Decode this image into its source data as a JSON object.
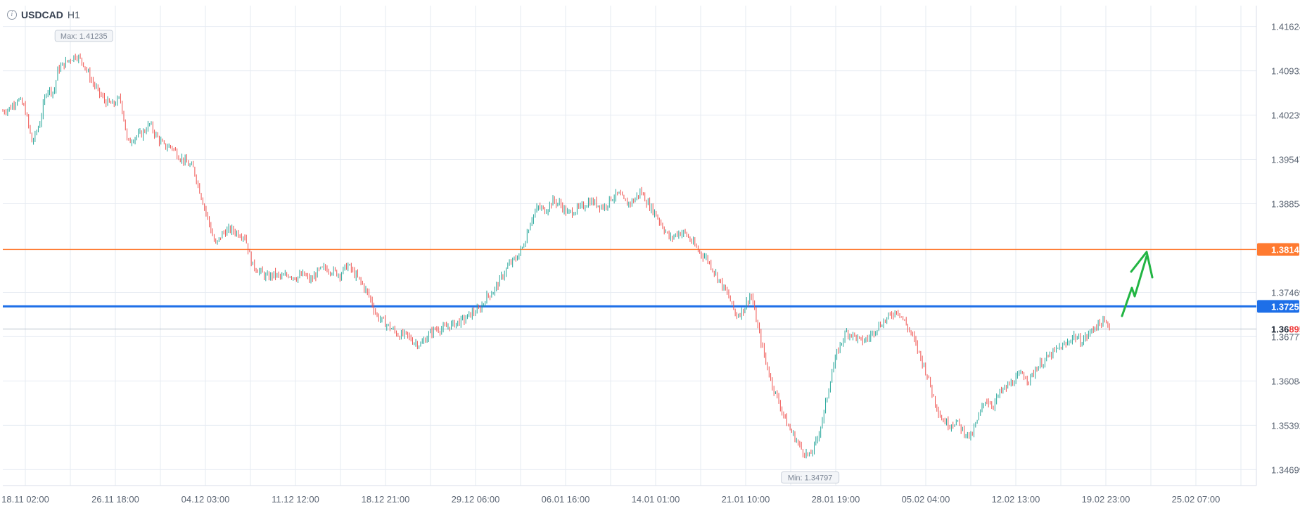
{
  "header": {
    "info_icon": "info-icon",
    "symbol": "USDCAD",
    "timeframe": "H1"
  },
  "colors": {
    "up_candle": "#26a69a",
    "down_candle": "#ef5350",
    "blue_level": "#1e6fe8",
    "orange_level": "#ff7a30",
    "arrow": "#22b543",
    "grid": "#e6ebf2",
    "axis_text": "#5b6573"
  },
  "chart_data": {
    "type": "candlestick",
    "symbol": "USDCAD",
    "timeframe": "H1",
    "ylim": [
      1.3445,
      1.4195
    ],
    "y_ticks": [
      1.41624,
      1.40932,
      1.40239,
      1.39547,
      1.38854,
      1.37469,
      1.36777,
      1.36084,
      1.35392,
      1.34699
    ],
    "y_tick_labels": [
      "1.41624",
      "1.40932",
      "1.40239",
      "1.39547",
      "1.38854",
      "1.37469",
      "1.36777",
      "1.36084",
      "1.35392",
      "1.34699"
    ],
    "x_tick_labels": [
      "18.11 02:00",
      "26.11 18:00",
      "04.12 03:00",
      "11.12 12:00",
      "18.12 21:00",
      "29.12 06:00",
      "06.01 16:00",
      "14.01 01:00",
      "21.01 10:00",
      "28.01 19:00",
      "05.02 04:00",
      "12.02 13:00",
      "19.02 23:00",
      "25.02 07:00"
    ],
    "price_path": [
      [
        0,
        1.403
      ],
      [
        1,
        1.4035
      ],
      [
        2,
        1.405
      ],
      [
        3,
        1.4035
      ],
      [
        4,
        1.398
      ],
      [
        5,
        1.401
      ],
      [
        6,
        1.4065
      ],
      [
        7,
        1.406
      ],
      [
        7.5,
        1.4095
      ],
      [
        8,
        1.41
      ],
      [
        9,
        1.411
      ],
      [
        10,
        1.4118
      ],
      [
        11,
        1.4105
      ],
      [
        12,
        1.408
      ],
      [
        13,
        1.406
      ],
      [
        14,
        1.4045
      ],
      [
        15,
        1.404
      ],
      [
        16,
        1.405
      ],
      [
        16.5,
        1.402
      ],
      [
        17,
        1.398
      ],
      [
        18,
        1.399
      ],
      [
        19,
        1.3995
      ],
      [
        20,
        1.401
      ],
      [
        21,
        1.399
      ],
      [
        22,
        1.3975
      ],
      [
        23,
        1.3975
      ],
      [
        24,
        1.396
      ],
      [
        25,
        1.395
      ],
      [
        26,
        1.394
      ],
      [
        27,
        1.39
      ],
      [
        28,
        1.386
      ],
      [
        29,
        1.382
      ],
      [
        30,
        1.384
      ],
      [
        31,
        1.3845
      ],
      [
        32,
        1.384
      ],
      [
        33,
        1.3835
      ],
      [
        34,
        1.379
      ],
      [
        35,
        1.378
      ],
      [
        36,
        1.377
      ],
      [
        37,
        1.3775
      ],
      [
        38,
        1.377
      ],
      [
        39,
        1.3775
      ],
      [
        40,
        1.377
      ],
      [
        41,
        1.3775
      ],
      [
        42,
        1.3765
      ],
      [
        43,
        1.378
      ],
      [
        44,
        1.3785
      ],
      [
        45,
        1.378
      ],
      [
        46,
        1.3775
      ],
      [
        47,
        1.379
      ],
      [
        48,
        1.3775
      ],
      [
        49,
        1.376
      ],
      [
        50,
        1.374
      ],
      [
        51,
        1.371
      ],
      [
        52,
        1.37
      ],
      [
        53,
        1.369
      ],
      [
        54,
        1.368
      ],
      [
        55,
        1.368
      ],
      [
        56,
        1.367
      ],
      [
        57,
        1.3665
      ],
      [
        58,
        1.368
      ],
      [
        59,
        1.369
      ],
      [
        60,
        1.369
      ],
      [
        61,
        1.3695
      ],
      [
        62,
        1.37
      ],
      [
        63,
        1.3705
      ],
      [
        64,
        1.3715
      ],
      [
        65,
        1.372
      ],
      [
        66,
        1.374
      ],
      [
        67,
        1.375
      ],
      [
        68,
        1.377
      ],
      [
        69,
        1.379
      ],
      [
        70,
        1.38
      ],
      [
        71,
        1.382
      ],
      [
        72,
        1.386
      ],
      [
        73,
        1.388
      ],
      [
        74,
        1.3875
      ],
      [
        75,
        1.389
      ],
      [
        76,
        1.3885
      ],
      [
        77,
        1.387
      ],
      [
        78,
        1.3875
      ],
      [
        79,
        1.388
      ],
      [
        80,
        1.389
      ],
      [
        81,
        1.3885
      ],
      [
        82,
        1.388
      ],
      [
        83,
        1.3895
      ],
      [
        84,
        1.39
      ],
      [
        85,
        1.3885
      ],
      [
        86,
        1.389
      ],
      [
        87,
        1.3905
      ],
      [
        88,
        1.3885
      ],
      [
        89,
        1.387
      ],
      [
        90,
        1.385
      ],
      [
        91,
        1.383
      ],
      [
        92,
        1.384
      ],
      [
        93,
        1.384
      ],
      [
        94,
        1.3825
      ],
      [
        95,
        1.381
      ],
      [
        96,
        1.38
      ],
      [
        97,
        1.378
      ],
      [
        98,
        1.376
      ],
      [
        99,
        1.374
      ],
      [
        100,
        1.371
      ],
      [
        101,
        1.372
      ],
      [
        102,
        1.3745
      ],
      [
        103,
        1.369
      ],
      [
        104,
        1.364
      ],
      [
        105,
        1.36
      ],
      [
        106,
        1.357
      ],
      [
        107,
        1.354
      ],
      [
        108,
        1.352
      ],
      [
        109,
        1.35
      ],
      [
        110,
        1.349
      ],
      [
        111,
        1.3515
      ],
      [
        112,
        1.356
      ],
      [
        113,
        1.362
      ],
      [
        114,
        1.366
      ],
      [
        115,
        1.3685
      ],
      [
        116,
        1.368
      ],
      [
        117,
        1.367
      ],
      [
        118,
        1.3675
      ],
      [
        119,
        1.369
      ],
      [
        120,
        1.37
      ],
      [
        121,
        1.371
      ],
      [
        122,
        1.372
      ],
      [
        123,
        1.37
      ],
      [
        124,
        1.368
      ],
      [
        125,
        1.365
      ],
      [
        126,
        1.362
      ],
      [
        127,
        1.358
      ],
      [
        128,
        1.355
      ],
      [
        129,
        1.354
      ],
      [
        130,
        1.3545
      ],
      [
        131,
        1.353
      ],
      [
        132,
        1.352
      ],
      [
        133,
        1.355
      ],
      [
        134,
        1.358
      ],
      [
        135,
        1.357
      ],
      [
        136,
        1.359
      ],
      [
        137,
        1.36
      ],
      [
        138,
        1.361
      ],
      [
        139,
        1.362
      ],
      [
        140,
        1.361
      ],
      [
        141,
        1.363
      ],
      [
        142,
        1.364
      ],
      [
        143,
        1.365
      ],
      [
        144,
        1.366
      ],
      [
        145,
        1.3665
      ],
      [
        146,
        1.368
      ],
      [
        147,
        1.367
      ],
      [
        148,
        1.368
      ],
      [
        149,
        1.3695
      ],
      [
        150,
        1.37
      ],
      [
        151,
        1.3695
      ]
    ],
    "horizontal_levels": [
      {
        "value": 1.3814,
        "label": "1.38140",
        "color": "#ff7a30",
        "line_weight": "thin"
      },
      {
        "value": 1.3725,
        "label": "1.37250",
        "color": "#1e6fe8",
        "line_weight": "bold"
      },
      {
        "value": 1.36895,
        "label": "1.36895",
        "label_prefix": "1.36",
        "label_suffix": "895",
        "kind": "current_price"
      }
    ],
    "annotations": {
      "max": {
        "label": "Max: 1.41235",
        "value": 1.41235
      },
      "min": {
        "label": "Min: 1.34797",
        "value": 1.34797
      }
    },
    "arrow": {
      "direction": "up",
      "color": "#22b543",
      "target_value": 1.381
    }
  }
}
